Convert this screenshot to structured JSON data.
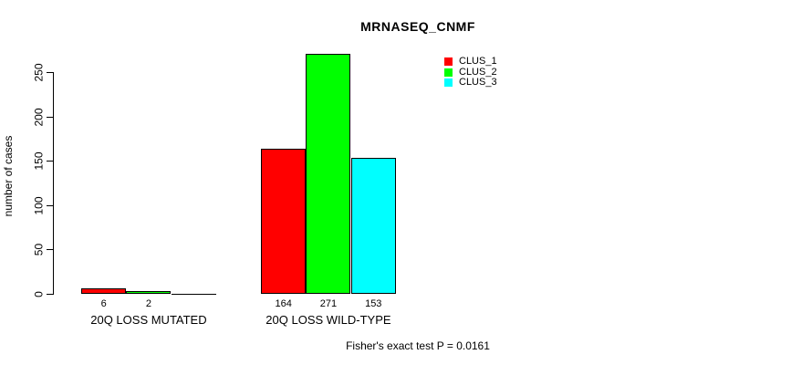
{
  "title": "MRNASEQ_CNMF",
  "footnote": "Fisher's exact test P = 0.0161",
  "chart_data": {
    "type": "bar",
    "title": "MRNASEQ_CNMF",
    "xlabel": "",
    "ylabel": "number of cases",
    "categories": [
      "20Q LOSS MUTATED",
      "20Q LOSS WILD-TYPE"
    ],
    "series": [
      {
        "name": "CLUS_1",
        "color": "#ff0000",
        "values": [
          6,
          164
        ]
      },
      {
        "name": "CLUS_2",
        "color": "#00ff00",
        "values": [
          2,
          271
        ]
      },
      {
        "name": "CLUS_3",
        "color": "#00ffff",
        "values": [
          0,
          153
        ]
      }
    ],
    "bar_labels": [
      [
        "6",
        "2",
        null
      ],
      [
        "164",
        "271",
        "153"
      ]
    ],
    "yticks": [
      0,
      50,
      100,
      150,
      200,
      250
    ],
    "ylim": [
      0,
      250
    ],
    "grid": false,
    "legend_position": "top-right",
    "legend_entries": [
      "CLUS_1",
      "CLUS_2",
      "CLUS_3"
    ],
    "annotation": "Fisher's exact test P = 0.0161"
  }
}
